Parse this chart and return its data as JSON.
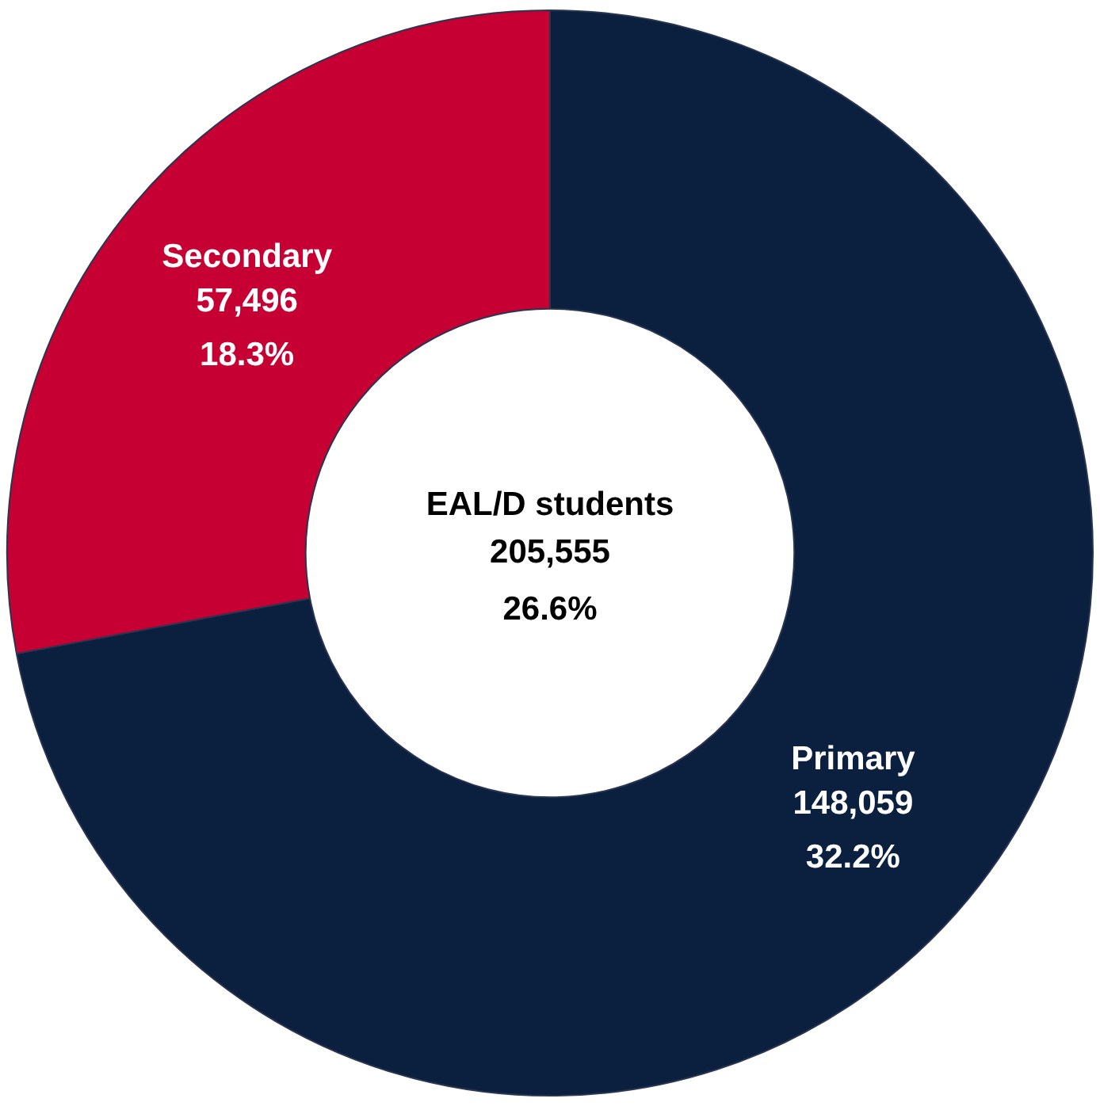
{
  "chart_data": {
    "type": "donut",
    "title": "EAL/D students",
    "categories": [
      "Primary",
      "Secondary"
    ],
    "values": [
      148059,
      57496
    ],
    "colors": [
      "#0b1f3f",
      "#c70033"
    ],
    "value_labels": [
      "148,059",
      "57,496"
    ],
    "annotations": [
      "205,555",
      "26.6%",
      {
        "text": "32.2%",
        "x": "Primary"
      },
      {
        "text": "18.3%",
        "x": "Secondary"
      }
    ],
    "legend": false
  }
}
